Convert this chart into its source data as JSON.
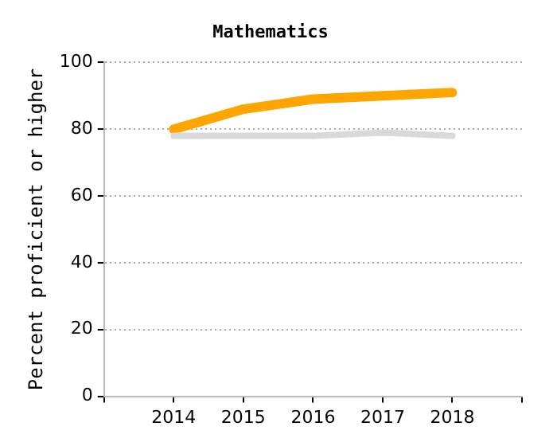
{
  "chart_data": {
    "type": "line",
    "title": "Mathematics",
    "ylabel": "Percent proficient or higher",
    "x": [
      2014,
      2015,
      2016,
      2017,
      2018
    ],
    "xlim": [
      2013,
      2019
    ],
    "xticks": [
      {
        "value": 2013,
        "label": null
      },
      2014,
      2015,
      2016,
      2017,
      2018,
      {
        "value": 2019,
        "label": null
      }
    ],
    "ylim": [
      0,
      100
    ],
    "yticks": [
      0,
      20,
      40,
      60,
      80,
      100
    ],
    "grid": "y",
    "legend": false,
    "marker": "none",
    "series": [
      {
        "color": "#d9d9d9",
        "values": [
          78,
          78,
          78,
          79,
          78
        ]
      },
      {
        "color": "#ffa500",
        "values": [
          80,
          86,
          89,
          90,
          91
        ]
      }
    ]
  }
}
